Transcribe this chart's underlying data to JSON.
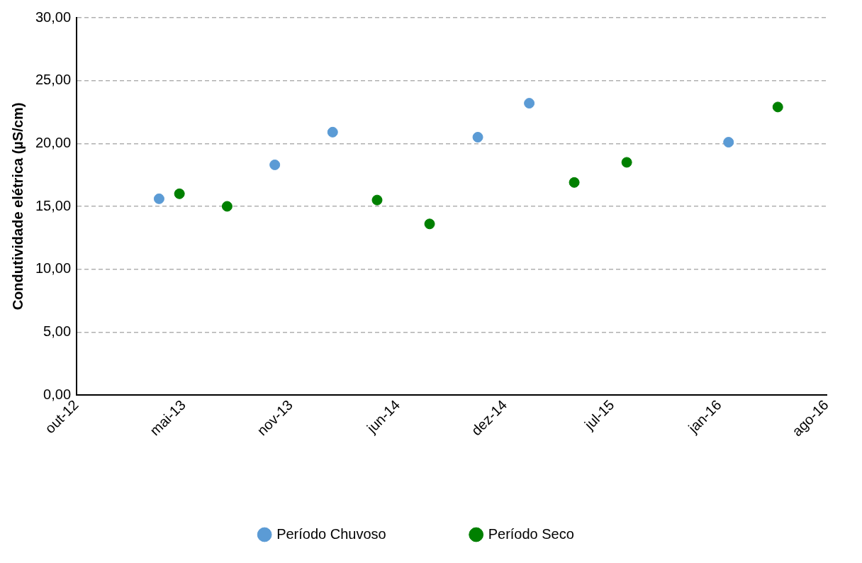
{
  "chart_data": {
    "type": "scatter",
    "ylabel": "Condutividade elétrica (µS/cm)",
    "xlim": [
      "2012-10-15",
      "2016-08-15"
    ],
    "xticks": [
      {
        "value": "2012-10-15",
        "label": "out-12"
      },
      {
        "value": "2013-05-03",
        "label": "mai-13"
      },
      {
        "value": "2013-11-19",
        "label": "nov-13"
      },
      {
        "value": "2014-06-07",
        "label": "jun-14"
      },
      {
        "value": "2014-12-24",
        "label": "dez-14"
      },
      {
        "value": "2015-07-12",
        "label": "jul-15"
      },
      {
        "value": "2016-01-28",
        "label": "jan-16"
      },
      {
        "value": "2016-08-15",
        "label": "ago-16"
      }
    ],
    "ylim": [
      0,
      30
    ],
    "yticks": [
      {
        "value": 0,
        "label": "0,00"
      },
      {
        "value": 5,
        "label": "5,00"
      },
      {
        "value": 10,
        "label": "10,00"
      },
      {
        "value": 15,
        "label": "15,00"
      },
      {
        "value": 20,
        "label": "20,00"
      },
      {
        "value": 25,
        "label": "25,00"
      },
      {
        "value": 30,
        "label": "30,00"
      }
    ],
    "grid": "y",
    "legend": "bottom",
    "marker": "circle",
    "series": [
      {
        "name": "Período Chuvoso",
        "color": "#5b9bd5",
        "x": [
          "2013-03-18",
          "2013-10-20",
          "2014-02-05",
          "2014-11-03",
          "2015-02-07",
          "2016-02-14"
        ],
        "values": [
          15.6,
          18.3,
          20.9,
          20.5,
          23.2,
          20.1
        ]
      },
      {
        "name": "Período Seco",
        "color": "#008000",
        "x": [
          "2013-04-25",
          "2013-07-23",
          "2014-04-29",
          "2014-08-05",
          "2015-05-02",
          "2015-08-08",
          "2016-05-16"
        ],
        "values": [
          16.0,
          15.0,
          15.5,
          13.6,
          16.9,
          18.5,
          22.9
        ]
      }
    ]
  }
}
